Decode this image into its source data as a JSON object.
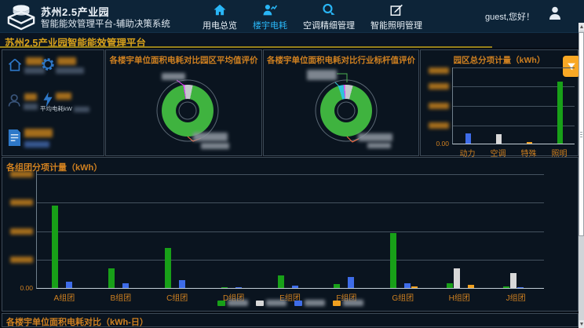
{
  "header": {
    "app_title": "苏州2.5产业园",
    "app_subtitle": "智能能效管理平台-辅助决策系统",
    "nav_items": [
      {
        "label": "用电总览",
        "icon": "home-icon",
        "active": false
      },
      {
        "label": "楼宇电耗",
        "icon": "building-power-icon",
        "active": true
      },
      {
        "label": "空调精细管理",
        "icon": "hvac-icon",
        "active": false
      },
      {
        "label": "智能照明管理",
        "icon": "lighting-icon",
        "active": false
      }
    ],
    "greeting": "guest,您好！"
  },
  "page_title": "苏州2.5产业园智能能效管理平台",
  "sidebar": {
    "stats_blurred": true,
    "partial_label": "平均电耗kW"
  },
  "bottom_strip": {
    "title": "各楼宇单位面积电耗对比（kWh-日）"
  },
  "colors": {
    "accent_cyan": "#29b6f6",
    "title_gold": "#d9a21b",
    "panel_title_orange": "#cf8020",
    "filter_button_orange": "#f9a825",
    "bar_green": "#18a018",
    "bar_blue": "#3e6ce8",
    "bar_white": "#d8d8d8",
    "bar_orange": "#f0a020"
  },
  "chart_data": [
    {
      "type": "pie",
      "donut": true,
      "title": "各楼宇单位面积电耗对比园区平均值评价",
      "labels_blurred": true,
      "slices": [
        {
          "name": "slice-magenta",
          "color": "#e040fb",
          "value_pct": 0.8
        },
        {
          "name": "slice-gray",
          "color": "#c3c8cc",
          "value_pct": 5.2
        },
        {
          "name": "slice-green",
          "color": "#3fb33f",
          "value_pct": 94.0
        }
      ]
    },
    {
      "type": "pie",
      "donut": true,
      "title": "各楼宇单位面积电耗对比行业标杆值评价",
      "labels_blurred": true,
      "slices": [
        {
          "name": "slice-cyan",
          "color": "#2ec5d8",
          "value_pct": 3.4
        },
        {
          "name": "slice-magenta",
          "color": "#e040fb",
          "value_pct": 0.8
        },
        {
          "name": "slice-gray",
          "color": "#c3c8cc",
          "value_pct": 5.0
        },
        {
          "name": "slice-green",
          "color": "#3fb33f",
          "value_pct": 90.8
        }
      ]
    },
    {
      "type": "bar",
      "title": "园区总分项计量（kWh）",
      "categories": [
        "动力",
        "空调",
        "特殊",
        "照明"
      ],
      "values_pct_of_ymax": [
        13.3,
        12.2,
        2,
        80.6
      ],
      "bar_colors": [
        "#3e6ce8",
        "#d8d8d8",
        "#f0a020",
        "#18a018"
      ],
      "y_axis": {
        "tick_count": 5,
        "tick_labels_blurred": true,
        "bottom_label": "0.00"
      },
      "grid": true
    },
    {
      "type": "bar",
      "title": "各组团分项计量（kWh）",
      "categories": [
        "A组团",
        "B组团",
        "C组团",
        "D组团",
        "E组团",
        "F组团",
        "G组团",
        "H组团",
        "J组团"
      ],
      "series": [
        {
          "name": "series-green",
          "color": "#18a018",
          "values_pct_of_ymax": [
            72,
            17,
            35,
            1,
            11,
            3.6,
            48,
            4.3,
            1.4
          ]
        },
        {
          "name": "series-white",
          "color": "#d8d8d8",
          "values_pct_of_ymax": [
            0,
            0,
            0,
            0,
            0,
            0,
            0,
            17.3,
            12.8
          ]
        },
        {
          "name": "series-blue",
          "color": "#3e6ce8",
          "values_pct_of_ymax": [
            5.5,
            4.3,
            7,
            0.7,
            2.3,
            9.4,
            3.9,
            0,
            1
          ]
        },
        {
          "name": "series-orange",
          "color": "#f0a020",
          "values_pct_of_ymax": [
            0,
            0,
            0,
            0,
            0,
            0,
            1.4,
            2.9,
            0
          ]
        }
      ],
      "y_axis": {
        "tick_count": 5,
        "tick_labels_blurred": true,
        "bottom_label": "0.00"
      },
      "legend": {
        "position": "bottom-center",
        "labels_blurred": true,
        "item_count": 4
      },
      "grid": true
    }
  ]
}
